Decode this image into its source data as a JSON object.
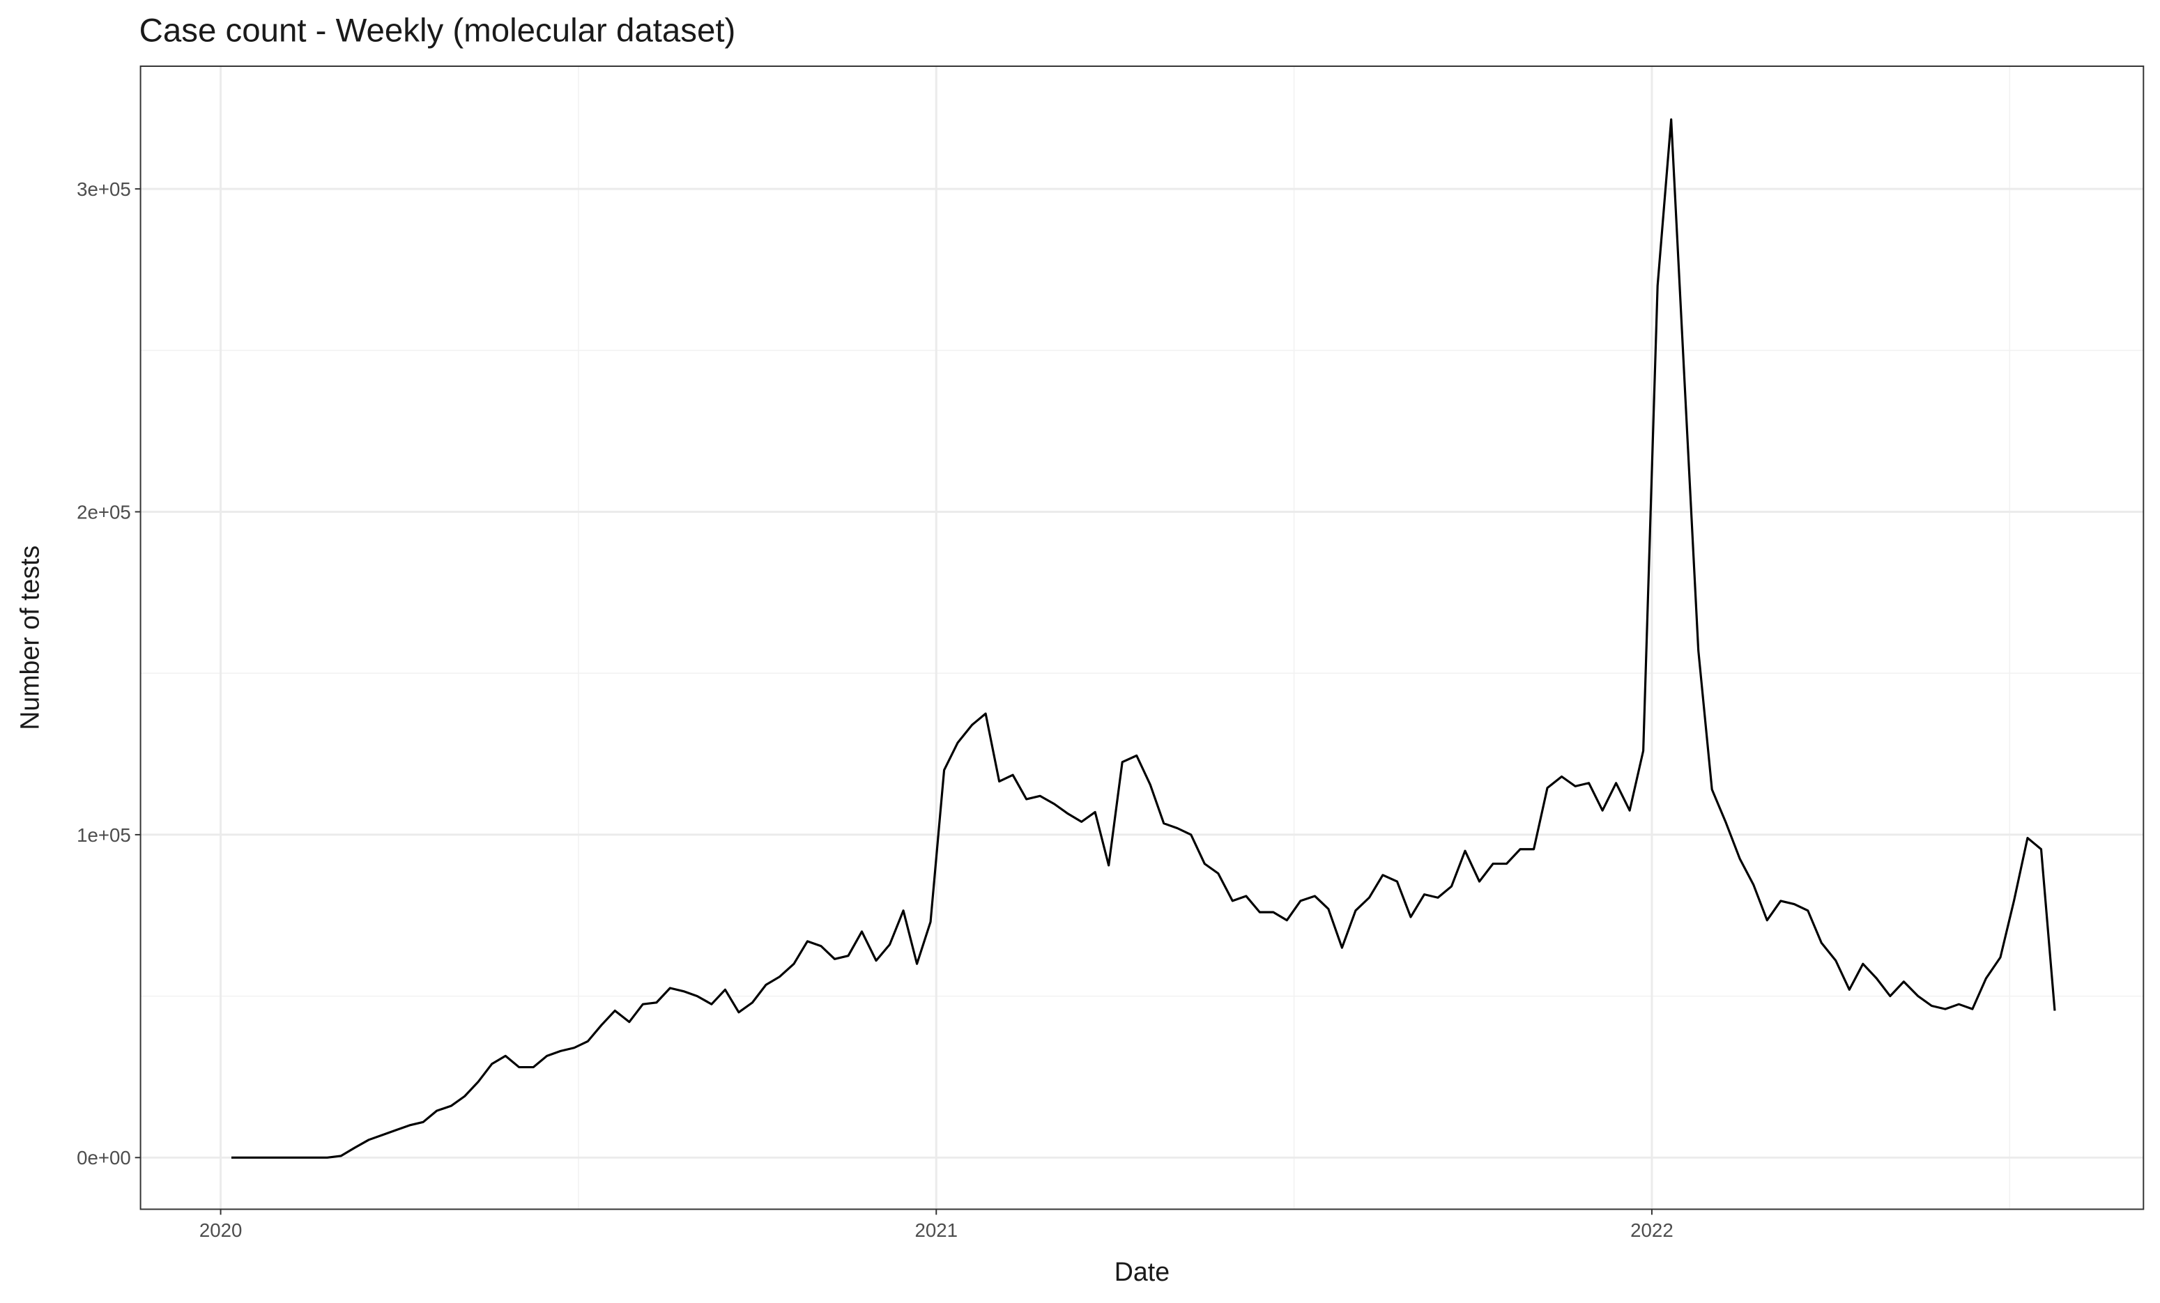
{
  "chart_data": {
    "type": "line",
    "title": "Case count - Weekly (molecular dataset)",
    "x_label": "Date",
    "y_label": "Number of tests",
    "x": [
      2020.015,
      2020.034,
      2020.053,
      2020.072,
      2020.092,
      2020.111,
      2020.13,
      2020.149,
      2020.168,
      2020.187,
      2020.207,
      2020.226,
      2020.245,
      2020.264,
      2020.283,
      2020.302,
      2020.322,
      2020.341,
      2020.36,
      2020.379,
      2020.398,
      2020.417,
      2020.437,
      2020.456,
      2020.475,
      2020.494,
      2020.513,
      2020.532,
      2020.551,
      2020.571,
      2020.59,
      2020.609,
      2020.628,
      2020.647,
      2020.666,
      2020.686,
      2020.705,
      2020.724,
      2020.743,
      2020.762,
      2020.781,
      2020.801,
      2020.82,
      2020.839,
      2020.858,
      2020.877,
      2020.896,
      2020.916,
      2020.935,
      2020.954,
      2020.973,
      2020.992,
      2021.011,
      2021.03,
      2021.05,
      2021.069,
      2021.088,
      2021.107,
      2021.126,
      2021.145,
      2021.165,
      2021.184,
      2021.203,
      2021.222,
      2021.241,
      2021.26,
      2021.28,
      2021.299,
      2021.318,
      2021.337,
      2021.356,
      2021.375,
      2021.394,
      2021.414,
      2021.433,
      2021.452,
      2021.471,
      2021.49,
      2021.509,
      2021.529,
      2021.548,
      2021.567,
      2021.586,
      2021.605,
      2021.624,
      2021.644,
      2021.663,
      2021.682,
      2021.701,
      2021.72,
      2021.739,
      2021.759,
      2021.778,
      2021.797,
      2021.816,
      2021.835,
      2021.854,
      2021.874,
      2021.893,
      2021.912,
      2021.931,
      2021.95,
      2021.969,
      2021.988,
      2022.008,
      2022.027,
      2022.046,
      2022.065,
      2022.084,
      2022.103,
      2022.123,
      2022.142,
      2022.161,
      2022.18,
      2022.199,
      2022.218,
      2022.237,
      2022.257,
      2022.276,
      2022.295,
      2022.314,
      2022.333,
      2022.352,
      2022.372,
      2022.391,
      2022.41,
      2022.429,
      2022.448,
      2022.467,
      2022.487,
      2022.506,
      2022.525,
      2022.544,
      2022.563
    ],
    "series": [
      {
        "color": "#000000",
        "values": [
          0,
          0,
          0,
          0,
          0,
          0,
          0,
          0,
          500,
          3000,
          5500,
          7000,
          8500,
          10000,
          11000,
          14500,
          16000,
          19000,
          23500,
          29000,
          31500,
          28000,
          28000,
          31500,
          33000,
          34000,
          36000,
          41000,
          45500,
          42000,
          47500,
          48000,
          52500,
          51500,
          50000,
          47500,
          52000,
          45000,
          48000,
          53500,
          56000,
          60000,
          67000,
          65500,
          61500,
          62500,
          70000,
          61000,
          66000,
          76500,
          60000,
          73000,
          120000,
          128500,
          134000,
          137500,
          116500,
          118500,
          111000,
          112000,
          109500,
          106500,
          104000,
          107000,
          90500,
          122500,
          124500,
          115500,
          103500,
          102000,
          100000,
          91000,
          88000,
          79500,
          81000,
          76000,
          76000,
          73500,
          79500,
          81000,
          77000,
          65000,
          76500,
          80500,
          87500,
          85500,
          74500,
          81500,
          80500,
          84000,
          95000,
          85500,
          91000,
          91000,
          95500,
          95500,
          114500,
          118000,
          115000,
          116000,
          107500,
          116000,
          107500,
          126000,
          270000,
          321500,
          239000,
          157000,
          114000,
          104000,
          92500,
          84500,
          73500,
          79500,
          78500,
          76500,
          66500,
          61000,
          52000,
          60000,
          55500,
          50000,
          54500,
          50000,
          47000,
          46000,
          47500,
          46000,
          55500,
          62000,
          79500,
          99000,
          95500,
          45500
        ]
      }
    ],
    "xlim": [
      2019.888,
      2022.687
    ],
    "xticks": [
      2020,
      2021,
      2022
    ],
    "xminorticks": [
      2020.5,
      2021.5,
      2022.5
    ],
    "ylim": [
      -16000,
      338000
    ],
    "yticks": [
      {
        "value": 0,
        "label": "0e+00"
      },
      {
        "value": 100000,
        "label": "1e+05"
      },
      {
        "value": 200000,
        "label": "2e+05"
      },
      {
        "value": 300000,
        "label": "3e+05"
      }
    ],
    "yminorticks": [
      50000,
      150000,
      250000
    ],
    "grid": true
  }
}
